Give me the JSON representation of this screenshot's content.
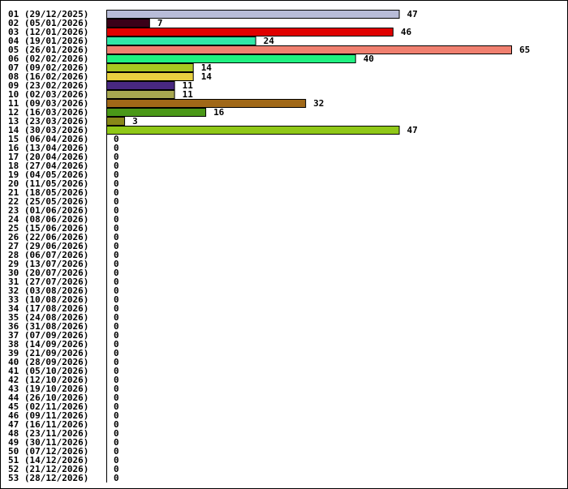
{
  "chart_data": {
    "type": "bar",
    "orientation": "horizontal",
    "title": "",
    "xlabel": "",
    "ylabel": "",
    "xlim": [
      0,
      65
    ],
    "grid": false,
    "legend": "none",
    "categories": [
      "01 (29/12/2025)",
      "02 (05/01/2026)",
      "03 (12/01/2026)",
      "04 (19/01/2026)",
      "05 (26/01/2026)",
      "06 (02/02/2026)",
      "07 (09/02/2026)",
      "08 (16/02/2026)",
      "09 (23/02/2026)",
      "10 (02/03/2026)",
      "11 (09/03/2026)",
      "12 (16/03/2026)",
      "13 (23/03/2026)",
      "14 (30/03/2026)",
      "15 (06/04/2026)",
      "16 (13/04/2026)",
      "17 (20/04/2026)",
      "18 (27/04/2026)",
      "19 (04/05/2026)",
      "20 (11/05/2026)",
      "21 (18/05/2026)",
      "22 (25/05/2026)",
      "23 (01/06/2026)",
      "24 (08/06/2026)",
      "25 (15/06/2026)",
      "26 (22/06/2026)",
      "27 (29/06/2026)",
      "28 (06/07/2026)",
      "29 (13/07/2026)",
      "30 (20/07/2026)",
      "31 (27/07/2026)",
      "32 (03/08/2026)",
      "33 (10/08/2026)",
      "34 (17/08/2026)",
      "35 (24/08/2026)",
      "36 (31/08/2026)",
      "37 (07/09/2026)",
      "38 (14/09/2026)",
      "39 (21/09/2026)",
      "40 (28/09/2026)",
      "41 (05/10/2026)",
      "42 (12/10/2026)",
      "43 (19/10/2026)",
      "44 (26/10/2026)",
      "45 (02/11/2026)",
      "46 (09/11/2026)",
      "47 (16/11/2026)",
      "48 (23/11/2026)",
      "49 (30/11/2026)",
      "50 (07/12/2026)",
      "51 (14/12/2026)",
      "52 (21/12/2026)",
      "53 (28/12/2026)"
    ],
    "values": [
      47,
      7,
      46,
      24,
      65,
      40,
      14,
      14,
      11,
      11,
      32,
      16,
      3,
      47,
      0,
      0,
      0,
      0,
      0,
      0,
      0,
      0,
      0,
      0,
      0,
      0,
      0,
      0,
      0,
      0,
      0,
      0,
      0,
      0,
      0,
      0,
      0,
      0,
      0,
      0,
      0,
      0,
      0,
      0,
      0,
      0,
      0,
      0,
      0,
      0,
      0,
      0,
      0
    ],
    "colors": [
      "#b8bcd8",
      "#3a0018",
      "#e00000",
      "#30e8a8",
      "#f08070",
      "#20f080",
      "#a8c820",
      "#e8d040",
      "#482880",
      "#a8a850",
      "#a06818",
      "#4a9818",
      "#888818",
      "#90c818"
    ],
    "bar_border_color": "#000000",
    "axis_color": "#000000"
  }
}
